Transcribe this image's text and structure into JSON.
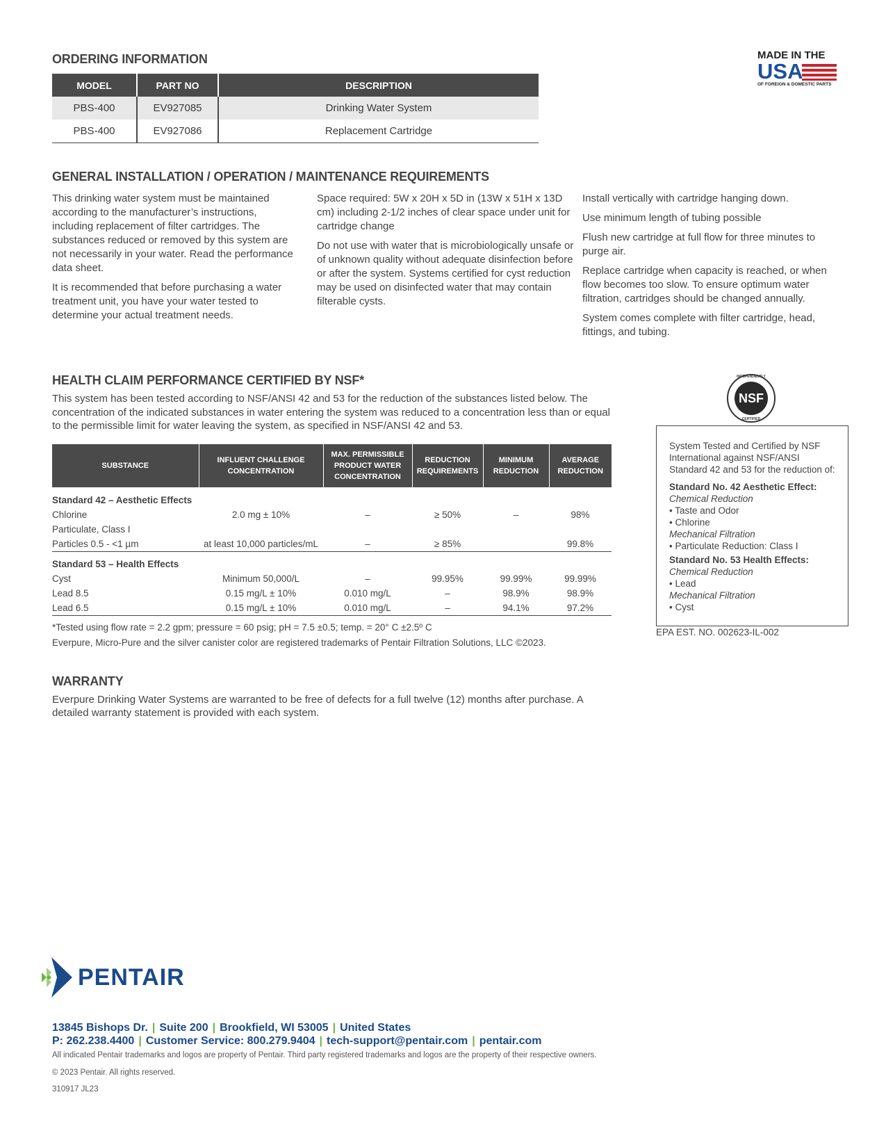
{
  "ordering": {
    "title": "ORDERING INFORMATION",
    "headers": [
      "MODEL",
      "PART NO",
      "DESCRIPTION"
    ],
    "rows": [
      [
        "PBS-400",
        "EV927085",
        "Drinking Water System"
      ],
      [
        "PBS-400",
        "EV927086",
        "Replacement Cartridge"
      ]
    ]
  },
  "usa_logo": {
    "line1": "MADE IN THE",
    "line2": "USA",
    "line3": "OF FOREIGN & DOMESTIC PARTS",
    "colors": {
      "blue": "#1d4f9c",
      "red": "#c8242f"
    }
  },
  "general": {
    "title": "GENERAL INSTALLATION / OPERATION / MAINTENANCE REQUIREMENTS",
    "col1": [
      "This drinking water system must be maintained according to the manufacturer’s instructions, including replacement of filter cartridges. The substances reduced or removed by this system are not necessarily in your water. Read the performance data sheet.",
      "It is recommended that before purchasing a water treatment unit, you have your water tested to determine your actual treatment needs."
    ],
    "col2": [
      "Space required: 5W x 20H x 5D in (13W x 51H x 13D cm) including 2-1/2 inches of clear space under unit for cartridge change",
      "Do not use with water that is microbiologically unsafe or of unknown quality without adequate disinfection before or after the system. Systems certified for cyst reduction may be used on disinfected water that may contain filterable cysts."
    ],
    "col3": [
      "Install vertically with cartridge hanging down.",
      "Use minimum length of tubing possible",
      "Flush new cartridge at full flow for three minutes to purge air.",
      "Replace cartridge when capacity is reached, or when flow becomes too slow. To ensure optimum water filtration, cartridges should be changed annually.",
      "System comes complete with filter cartridge, head, fittings, and tubing."
    ]
  },
  "health": {
    "title": "HEALTH CLAIM PERFORMANCE CERTIFIED BY NSF*",
    "intro": "This system has been tested according to NSF/ANSI 42 and 53 for the reduction of the substances listed below. The concentration of the indicated substances in water entering the system was reduced to a concentration less than or equal to the permissible limit for water leaving the system, as specified in NSF/ANSI 42 and 53.",
    "headers": [
      "SUBSTANCE",
      "INFLUENT CHALLENGE CONCENTRATION",
      "MAX. PERMISSIBLE PRODUCT WATER CONCENTRATION",
      "REDUCTION REQUIREMENTS",
      "MINIMUM REDUCTION",
      "AVERAGE REDUCTION"
    ],
    "group1": "Standard 42 – Aesthetic Effects",
    "rows1": [
      [
        "Chlorine",
        "2.0 mg ± 10%",
        "–",
        "≥ 50%",
        "–",
        "98%"
      ],
      [
        "Particulate, Class I",
        "",
        "",
        "",
        "",
        ""
      ],
      [
        "Particles 0.5 - <1 µm",
        "at least 10,000 particles/mL",
        "–",
        "≥ 85%",
        "",
        "99.8%"
      ]
    ],
    "group2": "Standard 53 – Health Effects",
    "rows2": [
      [
        "Cyst",
        "Minimum 50,000/L",
        "–",
        "99.95%",
        "99.99%",
        "99.99%"
      ],
      [
        "Lead 8.5",
        "0.15 mg/L ± 10%",
        "0.010 mg/L",
        "–",
        "98.9%",
        "98.9%"
      ],
      [
        "Lead 6.5",
        "0.15 mg/L ± 10%",
        "0.010 mg/L",
        "–",
        "94.1%",
        "97.2%"
      ]
    ],
    "footnote": "*Tested using flow rate = 2.2 gpm; pressure = 60 psig; pH = 7.5 ±0.5; temp. = 20° C ±2.5º C",
    "trademark": "Everpure, Micro-Pure and the silver canister color are registered trademarks of Pentair Filtration Solutions, LLC ©2023."
  },
  "nsf": {
    "logo_text": "NSF",
    "ring_top": "INDEPENDENTLY",
    "ring_bottom": "CERTIFIED",
    "intro": "System Tested and Certified by NSF International against NSF/ANSI Standard 42 and 53 for the reduction of:",
    "std42": "Standard No. 42 Aesthetic Effect:",
    "chem": "Chemical Reduction",
    "taste": "• Taste and Odor",
    "chlorine": "• Chlorine",
    "mech": "Mechanical Filtration",
    "particulate": "• Particulate Reduction: Class I",
    "std53": "Standard No. 53 Health Effects:",
    "chem2": "Chemical Reduction",
    "lead": "• Lead",
    "mech2": "Mechanical Filtration",
    "cyst": "• Cyst",
    "epa": "EPA EST. NO. 002623-IL-002"
  },
  "warranty": {
    "title": "WARRANTY",
    "text": "Everpure Drinking Water Systems are warranted to be free of defects for a full twelve (12) months after purchase. A detailed warranty statement is provided with each system."
  },
  "footer": {
    "logo": "PENTAIR",
    "brand_colors": {
      "blue": "#1a4a8a",
      "green": "#6bb545"
    },
    "address": [
      "13845 Bishops Dr.",
      "Suite 200",
      "Brookfield, WI 53005",
      "United States"
    ],
    "contact": [
      "P: 262.238.4400",
      "Customer Service: 800.279.9404",
      "tech-support@pentair.com",
      "pentair.com"
    ],
    "legal": "All indicated Pentair trademarks and logos are property of Pentair. Third party registered trademarks and logos are the property of their respective owners.",
    "copyright": "© 2023 Pentair.  All rights reserved.",
    "code": "310917 JL23"
  }
}
